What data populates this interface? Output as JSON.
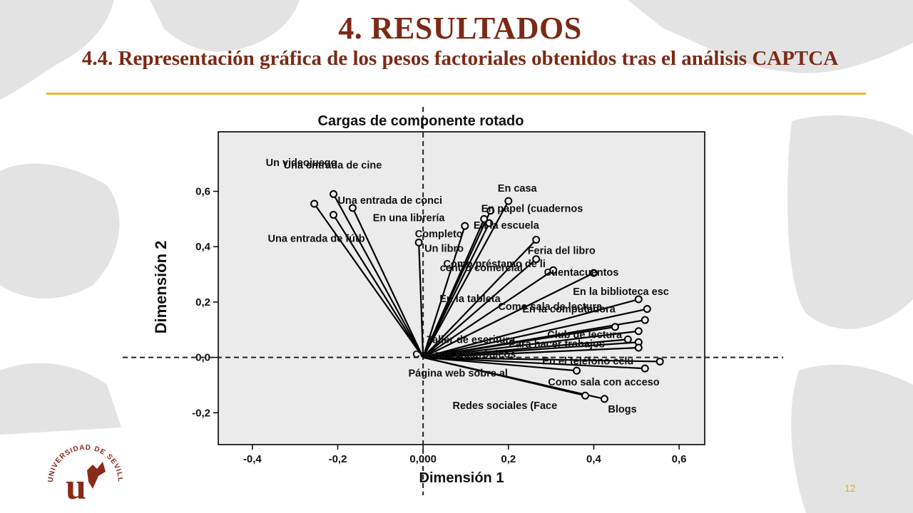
{
  "slide": {
    "title": "4. RESULTADOS",
    "subtitle": "4.4. Representación gráfica de los pesos factoriales obtenidos tras el análisis CAPTCA",
    "page_number": "12",
    "accent_color": "#7b2a16",
    "rule_color": "#e6b92c"
  },
  "logo": {
    "text": "UNIVERSIDAD DE SEVILLA",
    "monogram": "u"
  },
  "chart_data": {
    "type": "scatter",
    "title": "Cargas de componente rotado",
    "xlabel": "Dimensión 1",
    "ylabel": "Dimensión 2",
    "xlim": [
      -0.48,
      0.66
    ],
    "ylim": [
      -0.315,
      0.815
    ],
    "xticks": [
      "-0,4",
      "-0,2",
      "0,000",
      "0,2",
      "0,4",
      "0,6"
    ],
    "xtick_values": [
      -0.4,
      -0.2,
      0.0,
      0.2,
      0.4,
      0.6
    ],
    "yticks": [
      "-0,2",
      "0,0",
      "0,2",
      "0,4",
      "0,6"
    ],
    "ytick_values": [
      -0.2,
      0.0,
      0.2,
      0.4,
      0.6
    ],
    "grid": false,
    "reference_lines": "dashed at x=0 and y=0",
    "background_color": "#ebebeb",
    "points": [
      {
        "label": "Un videojuego",
        "x": -0.255,
        "y": 0.555
      },
      {
        "label": "Una entrada de cine",
        "x": -0.21,
        "y": 0.59
      },
      {
        "label": "Una entrada de conci",
        "x": -0.165,
        "y": 0.54
      },
      {
        "label": "Una entrada de fútb",
        "x": -0.21,
        "y": 0.515
      },
      {
        "label": "En casa",
        "x": 0.2,
        "y": 0.565
      },
      {
        "label": "En papel (cuadernos",
        "x": 0.158,
        "y": 0.53
      },
      {
        "label": "En una librería",
        "x": 0.143,
        "y": 0.5
      },
      {
        "label": "En la escuela",
        "x": 0.155,
        "y": 0.485
      },
      {
        "label": "Completo",
        "x": 0.098,
        "y": 0.475
      },
      {
        "label": "Un libro",
        "x": -0.01,
        "y": 0.415
      },
      {
        "label": "Feria del libro",
        "x": 0.265,
        "y": 0.425
      },
      {
        "label": "centro comercial",
        "x": 0.265,
        "y": 0.355
      },
      {
        "label": "Cuentacuentos",
        "x": 0.305,
        "y": 0.315
      },
      {
        "label": "Como préstamo de li",
        "x": 0.4,
        "y": 0.305
      },
      {
        "label": "En la biblioteca esc",
        "x": 0.505,
        "y": 0.21
      },
      {
        "label": "En la computadora",
        "x": 0.525,
        "y": 0.175
      },
      {
        "label": "En la tableta",
        "x": 0.52,
        "y": 0.135
      },
      {
        "label": "Como sala de lectura",
        "x": 0.45,
        "y": 0.11
      },
      {
        "label": "Club de lectura",
        "x": 0.505,
        "y": 0.095
      },
      {
        "label": "Taller de escritura",
        "x": 0.48,
        "y": 0.065
      },
      {
        "label": "Para hacer trabajos",
        "x": 0.505,
        "y": 0.055
      },
      {
        "label": "Correos electrónicos",
        "x": 0.505,
        "y": 0.035
      },
      {
        "label": "En el teléfono celu",
        "x": 0.555,
        "y": -0.015
      },
      {
        "label": "Página web sobre al",
        "x": 0.36,
        "y": -0.048
      },
      {
        "label": "Como sala con acceso",
        "x": 0.52,
        "y": -0.04
      },
      {
        "label": "Redes sociales (Face",
        "x": 0.38,
        "y": -0.138
      },
      {
        "label": "Blogs",
        "x": 0.425,
        "y": -0.15
      }
    ]
  }
}
